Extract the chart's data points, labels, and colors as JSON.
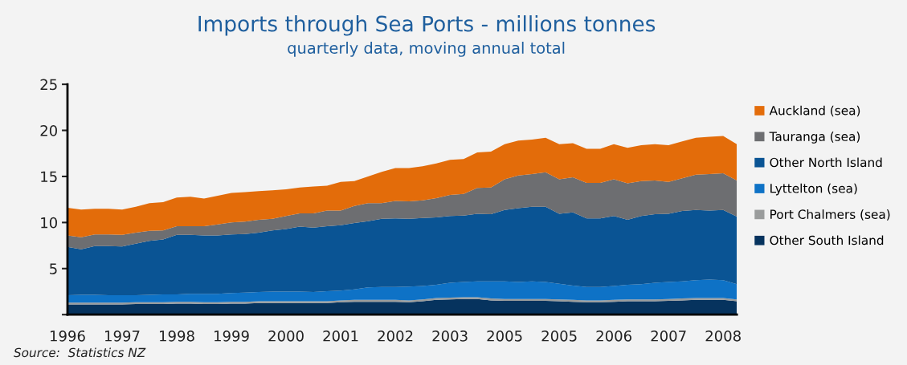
{
  "chart_data": {
    "type": "area",
    "stacked": true,
    "title": "Imports through Sea Ports - millions tonnes",
    "subtitle": "quarterly data, moving annual total",
    "categories": [
      "1996",
      null,
      null,
      null,
      "1997",
      null,
      null,
      null,
      "1998",
      null,
      null,
      null,
      "1999",
      null,
      null,
      null,
      "2000",
      null,
      null,
      null,
      "2001",
      null,
      null,
      null,
      "2002",
      null,
      null,
      null,
      "2003",
      null,
      null,
      null,
      "2005",
      null,
      null,
      null,
      "2005",
      null,
      null,
      null,
      "2006",
      null,
      null,
      null,
      "2007",
      null,
      null,
      null,
      "2008",
      null
    ],
    "series": [
      {
        "name": "Other South Island",
        "color": "#06335e",
        "values": [
          1.1,
          1.1,
          1.1,
          1.1,
          1.1,
          1.15,
          1.15,
          1.15,
          1.2,
          1.2,
          1.15,
          1.15,
          1.2,
          1.2,
          1.25,
          1.25,
          1.25,
          1.25,
          1.25,
          1.25,
          1.35,
          1.4,
          1.4,
          1.4,
          1.4,
          1.35,
          1.45,
          1.6,
          1.65,
          1.7,
          1.7,
          1.55,
          1.5,
          1.5,
          1.5,
          1.5,
          1.45,
          1.4,
          1.35,
          1.35,
          1.4,
          1.45,
          1.45,
          1.45,
          1.5,
          1.55,
          1.6,
          1.6,
          1.6,
          1.45
        ]
      },
      {
        "name": "Port Chalmers (sea)",
        "color": "#9a9c9c",
        "values": [
          0.2,
          0.2,
          0.2,
          0.2,
          0.2,
          0.2,
          0.2,
          0.2,
          0.2,
          0.2,
          0.2,
          0.2,
          0.2,
          0.2,
          0.2,
          0.2,
          0.2,
          0.2,
          0.2,
          0.2,
          0.2,
          0.2,
          0.2,
          0.2,
          0.2,
          0.2,
          0.2,
          0.2,
          0.2,
          0.2,
          0.2,
          0.2,
          0.2,
          0.2,
          0.2,
          0.2,
          0.2,
          0.2,
          0.2,
          0.2,
          0.2,
          0.2,
          0.2,
          0.2,
          0.2,
          0.2,
          0.2,
          0.2,
          0.2,
          0.2
        ]
      },
      {
        "name": "Lyttelton (sea)",
        "color": "#0e72c6",
        "values": [
          0.8,
          0.85,
          0.85,
          0.8,
          0.8,
          0.75,
          0.8,
          0.85,
          0.8,
          0.85,
          0.9,
          0.9,
          0.95,
          1.0,
          1.0,
          1.05,
          1.05,
          1.05,
          1.0,
          1.1,
          1.05,
          1.15,
          1.35,
          1.4,
          1.4,
          1.5,
          1.45,
          1.45,
          1.6,
          1.65,
          1.7,
          1.85,
          1.9,
          1.85,
          1.9,
          1.85,
          1.7,
          1.55,
          1.45,
          1.45,
          1.5,
          1.6,
          1.65,
          1.8,
          1.85,
          1.85,
          1.95,
          2.0,
          1.95,
          1.65
        ]
      },
      {
        "name": "Other North Island",
        "color": "#0a5494",
        "values": [
          5.25,
          4.95,
          5.3,
          5.35,
          5.3,
          5.6,
          5.85,
          5.95,
          6.45,
          6.4,
          6.35,
          6.35,
          6.35,
          6.35,
          6.45,
          6.65,
          6.8,
          7.05,
          7.0,
          7.05,
          7.1,
          7.2,
          7.2,
          7.4,
          7.45,
          7.35,
          7.4,
          7.3,
          7.25,
          7.2,
          7.35,
          7.3,
          7.75,
          8.0,
          8.1,
          8.15,
          7.6,
          7.95,
          7.45,
          7.45,
          7.6,
          7.05,
          7.4,
          7.45,
          7.4,
          7.65,
          7.6,
          7.5,
          7.6,
          7.35
        ]
      },
      {
        "name": "Tauranga (sea)",
        "color": "#6d6e71",
        "values": [
          1.25,
          1.3,
          1.25,
          1.25,
          1.25,
          1.2,
          1.1,
          1.0,
          0.95,
          0.95,
          1.0,
          1.2,
          1.3,
          1.35,
          1.4,
          1.25,
          1.4,
          1.45,
          1.55,
          1.7,
          1.6,
          1.85,
          1.95,
          1.7,
          1.9,
          1.9,
          1.9,
          2.1,
          2.3,
          2.35,
          2.8,
          2.9,
          3.35,
          3.55,
          3.55,
          3.75,
          3.75,
          3.8,
          3.85,
          3.85,
          4.0,
          3.95,
          3.8,
          3.65,
          3.45,
          3.55,
          3.85,
          3.95,
          4.0,
          3.9
        ]
      },
      {
        "name": "Auckland (sea)",
        "color": "#e36c0a",
        "values": [
          3.0,
          3.0,
          2.8,
          2.8,
          2.75,
          2.8,
          3.0,
          3.05,
          3.1,
          3.2,
          3.0,
          3.1,
          3.2,
          3.2,
          3.1,
          3.1,
          2.9,
          2.8,
          2.9,
          2.7,
          3.1,
          2.7,
          2.9,
          3.4,
          3.55,
          3.6,
          3.7,
          3.75,
          3.8,
          3.8,
          3.85,
          3.9,
          3.8,
          3.8,
          3.75,
          3.75,
          3.8,
          3.7,
          3.7,
          3.7,
          3.8,
          3.85,
          3.9,
          3.95,
          4.0,
          4.0,
          4.0,
          4.05,
          4.05,
          3.95
        ]
      }
    ],
    "ylim": [
      0,
      25
    ],
    "yticks": [
      {
        "value": 0,
        "label": null
      },
      5,
      10,
      15,
      20,
      25
    ],
    "grid": false,
    "legend": "right",
    "annotations": [
      "Source:  Statistics NZ"
    ]
  }
}
